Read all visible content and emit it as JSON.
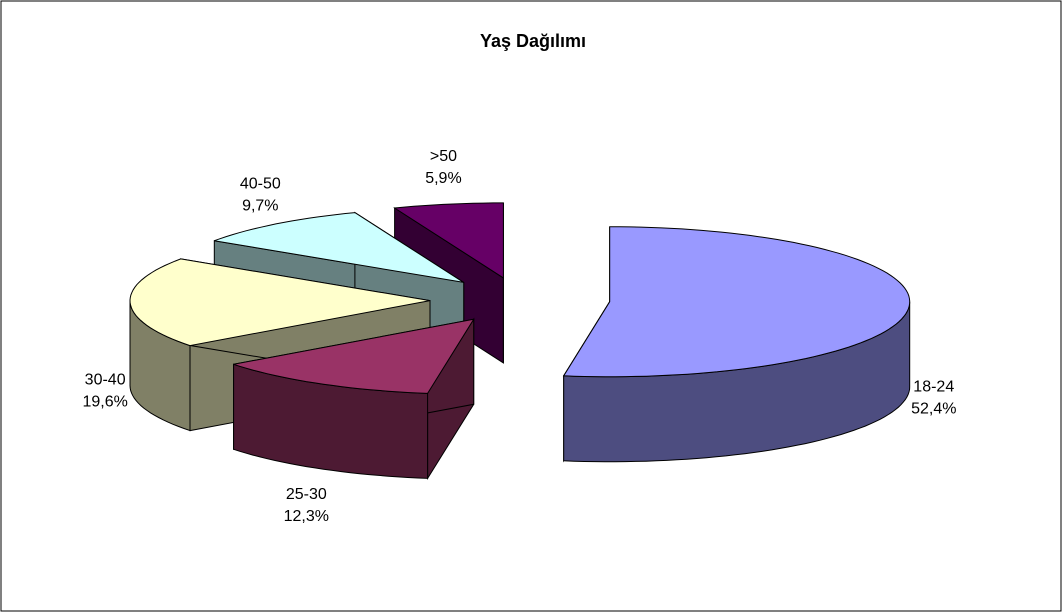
{
  "chart_data": {
    "type": "pie3d",
    "title": "Yaş Dağılımı",
    "categories": [
      "18-24",
      "25-30",
      "30-40",
      "40-50",
      ">50"
    ],
    "values": [
      52.4,
      12.3,
      19.6,
      9.7,
      5.9
    ],
    "value_labels": [
      "52,4%",
      "12,3%",
      "19,6%",
      "9,7%",
      "5,9%"
    ],
    "colors": [
      "#9999FF",
      "#993366",
      "#FFFFCC",
      "#CCFFFF",
      "#660066"
    ]
  }
}
